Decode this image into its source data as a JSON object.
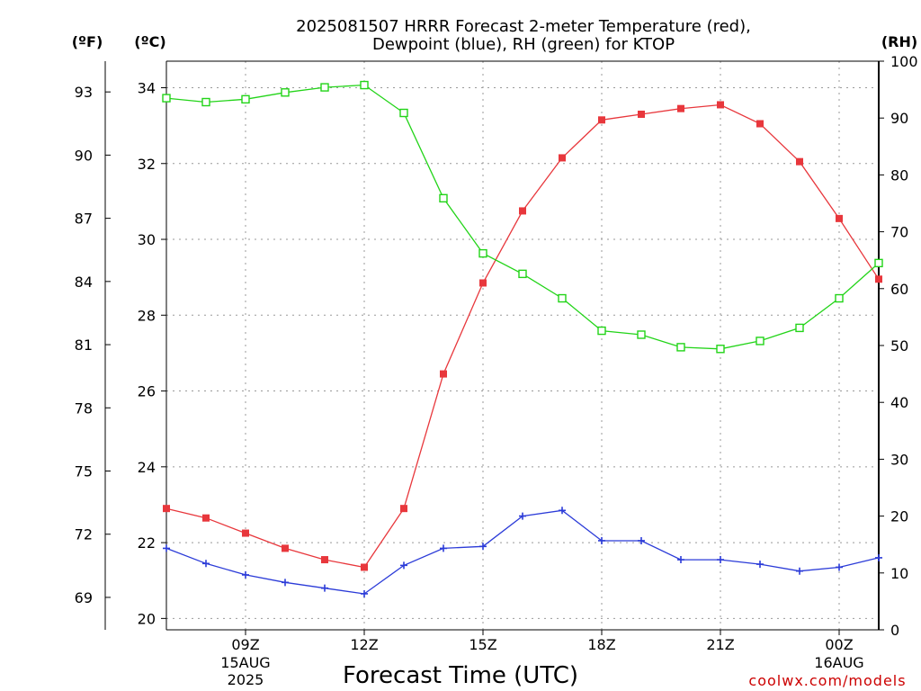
{
  "title_line1": "2025081507 HRRR Forecast 2-meter Temperature (red),",
  "title_line2": "Dewpoint (blue), RH (green) for KTOP",
  "units": {
    "fahrenheit": "(ºF)",
    "celsius": "(ºC)",
    "rh": "(RH)"
  },
  "x_axis_label": "Forecast Time (UTC)",
  "credit": "coolwx.com/models",
  "colors": {
    "temperature": "#e8373c",
    "dewpoint": "#2b3bd8",
    "rh": "#22d418",
    "background": "#ffffff",
    "axis": "#000000"
  },
  "chart_data": {
    "type": "line",
    "x": [
      "07Z",
      "08Z",
      "09Z",
      "10Z",
      "11Z",
      "12Z",
      "13Z",
      "14Z",
      "15Z",
      "16Z",
      "17Z",
      "18Z",
      "19Z",
      "20Z",
      "21Z",
      "22Z",
      "23Z",
      "00Z",
      "01Z"
    ],
    "x_ticks": [
      {
        "index": 2,
        "label": "09Z",
        "sublabel1": "15AUG",
        "sublabel2": "2025"
      },
      {
        "index": 5,
        "label": "12Z",
        "sublabel1": "",
        "sublabel2": ""
      },
      {
        "index": 8,
        "label": "15Z",
        "sublabel1": "",
        "sublabel2": ""
      },
      {
        "index": 11,
        "label": "18Z",
        "sublabel1": "",
        "sublabel2": ""
      },
      {
        "index": 14,
        "label": "21Z",
        "sublabel1": "",
        "sublabel2": ""
      },
      {
        "index": 17,
        "label": "00Z",
        "sublabel1": "16AUG",
        "sublabel2": ""
      }
    ],
    "series": [
      {
        "axis": "celsius",
        "marker": "filled-square",
        "values": [
          22.9,
          22.65,
          22.25,
          21.85,
          21.55,
          21.35,
          22.9,
          26.45,
          28.85,
          30.75,
          32.15,
          33.15,
          33.3,
          33.45,
          33.55,
          33.05,
          32.05,
          30.55,
          28.95
        ]
      },
      {
        "axis": "celsius",
        "marker": "plus",
        "values": [
          21.85,
          21.45,
          21.15,
          20.95,
          20.8,
          20.65,
          21.4,
          21.85,
          21.9,
          22.7,
          22.85,
          22.05,
          22.05,
          21.55,
          21.55,
          21.43,
          21.25,
          21.35,
          21.6
        ]
      },
      {
        "axis": "rh",
        "marker": "open-square",
        "values": [
          93.5,
          92.8,
          93.3,
          94.5,
          95.4,
          95.8,
          90.9,
          75.9,
          66.2,
          62.6,
          58.3,
          52.6,
          51.9,
          49.7,
          49.4,
          50.8,
          53.1,
          58.3,
          64.5
        ]
      }
    ],
    "y_left_celsius": {
      "range": [
        19.7,
        34.7
      ],
      "ticks": [
        20,
        22,
        24,
        26,
        28,
        30,
        32,
        34
      ]
    },
    "y_left_fahrenheit": {
      "ticks": [
        69,
        72,
        75,
        78,
        81,
        84,
        87,
        90,
        93
      ]
    },
    "y_right_rh": {
      "range": [
        0,
        100
      ],
      "ticks": [
        0,
        10,
        20,
        30,
        40,
        50,
        60,
        70,
        80,
        90,
        100
      ]
    },
    "grid": true
  }
}
